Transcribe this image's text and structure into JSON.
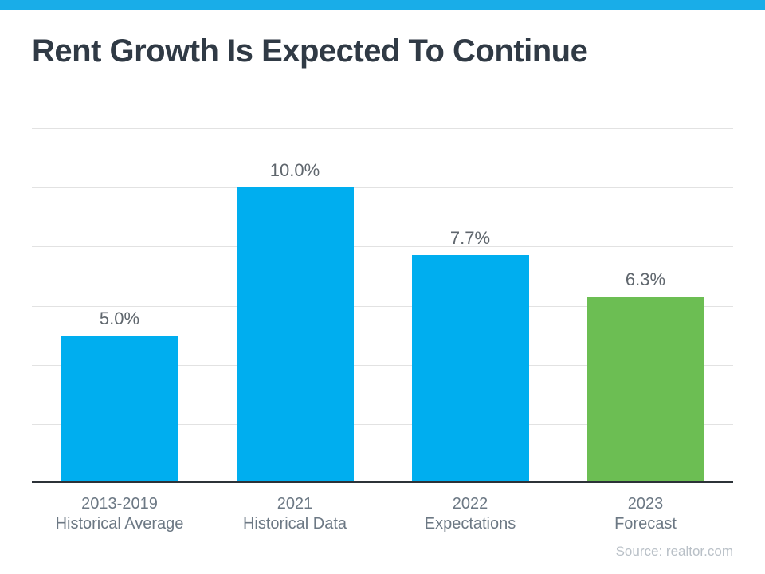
{
  "title": "Rent Growth Is Expected To Continue",
  "source": "Source: realtor.com",
  "colors": {
    "accent_bar": "#19ade8",
    "bar_blue": "#00aeef",
    "bar_green": "#6cbe53",
    "title_text": "#303a45",
    "value_label": "#5f666d",
    "axis_label": "#6c7884",
    "source_text": "#b9c0c7",
    "gridline": "#e2e2e2",
    "axis_line": "#2c3238"
  },
  "chart_data": {
    "type": "bar",
    "title": "Rent Growth Is Expected To Continue",
    "categories": [
      "2013-2019 Historical Average",
      "2021 Historical Data",
      "2022 Expectations",
      "2023 Forecast"
    ],
    "category_lines": [
      [
        "2013-2019",
        "Historical Average"
      ],
      [
        "2021",
        "Historical Data"
      ],
      [
        "2022",
        "Expectations"
      ],
      [
        "2023",
        "Forecast"
      ]
    ],
    "values": [
      5.0,
      10.0,
      7.7,
      6.3
    ],
    "value_labels": [
      "5.0%",
      "10.0%",
      "7.7%",
      "6.3%"
    ],
    "bar_colors": [
      "#00aeef",
      "#00aeef",
      "#00aeef",
      "#6cbe53"
    ],
    "xlabel": "",
    "ylabel": "",
    "ylim": [
      0,
      12
    ],
    "gridline_step": 2,
    "grid": true,
    "legend": false,
    "annotation": "Source: realtor.com"
  }
}
